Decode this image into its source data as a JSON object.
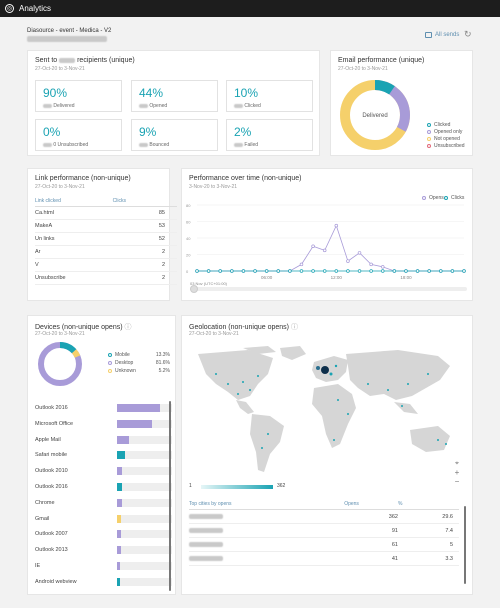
{
  "header": {
    "app_title": "Analytics",
    "logo_icon": "analytics-logo-icon"
  },
  "campaign": {
    "name": "Diasource - event - Medica - V2"
  },
  "toolbar": {
    "all_sends_label": "All sends",
    "calendar_icon": "calendar-icon",
    "refresh_icon": "refresh-icon"
  },
  "sent": {
    "title": "Sent to",
    "title_suffix": "recipients (unique)",
    "dates": "27-Oct-20 to 3-Nov-21",
    "stats": [
      {
        "value": "90%",
        "label": "Delivered"
      },
      {
        "value": "44%",
        "label": "Opened"
      },
      {
        "value": "10%",
        "label": "Clicked"
      },
      {
        "value": "0%",
        "label": "0 Unsubscribed"
      },
      {
        "value": "9%",
        "label": "Bounced"
      },
      {
        "value": "2%",
        "label": "Failed"
      }
    ]
  },
  "email_perf": {
    "title": "Email performance (unique)",
    "dates": "27-Oct-20 to 3-Nov-21",
    "center_label": "Delivered",
    "colors": {
      "clicked": "#1aa3b3",
      "opened_only": "#a89bd8",
      "not_opened": "#f5d06b",
      "unsubscribed": "#e26a7a"
    },
    "legend": [
      "Clicked",
      "Opened only",
      "Not opened",
      "Unsubscribed"
    ]
  },
  "link_perf": {
    "title": "Link performance (non-unique)",
    "dates": "27-Oct-20 to 3-Nov-21",
    "col_link": "Link clicked",
    "col_clicks": "Clicks",
    "rows": [
      {
        "link": "Ca.html",
        "clicks": "85"
      },
      {
        "link": "MakeA",
        "clicks": "53"
      },
      {
        "link": "Un links",
        "clicks": "52"
      },
      {
        "link": "Ar",
        "clicks": "2"
      },
      {
        "link": "V",
        "clicks": "2"
      },
      {
        "link": "Unsubscribe",
        "clicks": "2"
      }
    ]
  },
  "perf_time": {
    "title": "Performance over time (non-unique)",
    "dates": "3-Nov-20 to 3-Nov-21",
    "legend_opens": "Opens",
    "legend_clicks": "Clicks",
    "x_ticks": [
      "06:00",
      "12:00",
      "18:00"
    ],
    "x_start_label": "03 Nov (UTC+01:00)",
    "y_ticks": [
      "80",
      "60",
      "40",
      "20",
      "0"
    ]
  },
  "chart_data": {
    "type": "line",
    "title": "Performance over time (non-unique)",
    "x": [
      "00:00",
      "01:00",
      "02:00",
      "03:00",
      "04:00",
      "05:00",
      "06:00",
      "07:00",
      "08:00",
      "09:00",
      "10:00",
      "11:00",
      "12:00",
      "13:00",
      "14:00",
      "15:00",
      "16:00",
      "17:00",
      "18:00",
      "19:00",
      "20:00",
      "21:00",
      "22:00",
      "23:00"
    ],
    "series": [
      {
        "name": "Opens",
        "color": "#a89bd8",
        "values": [
          0,
          0,
          0,
          0,
          0,
          0,
          0,
          0,
          0,
          8,
          30,
          25,
          55,
          12,
          22,
          8,
          5,
          0,
          0,
          0,
          0,
          0,
          0,
          0
        ]
      },
      {
        "name": "Clicks",
        "color": "#1aa3b3",
        "values": [
          0,
          0,
          0,
          0,
          0,
          0,
          0,
          0,
          0,
          0,
          0,
          0,
          0,
          0,
          0,
          0,
          0,
          0,
          0,
          0,
          0,
          0,
          0,
          0
        ]
      }
    ],
    "ylim": [
      0,
      80
    ],
    "grid": true,
    "legend": "top-right"
  },
  "devices": {
    "title": "Devices (non-unique opens)",
    "dates": "27-Oct-20 to 3-Nov-21",
    "donut_legend": [
      {
        "label": "Mobile",
        "value": "13.3%",
        "color": "#1aa3b3"
      },
      {
        "label": "Desktop",
        "value": "81.6%",
        "color": "#a89bd8"
      },
      {
        "label": "Unknown",
        "value": "5.2%",
        "color": "#f5d06b"
      }
    ],
    "rows": [
      {
        "name": "Outlook 2016",
        "pct": "31.4%",
        "fraction": 0.314,
        "color": "#a89bd8"
      },
      {
        "name": "Microsoft Office",
        "pct": "25.6%",
        "fraction": 0.256,
        "color": "#a89bd8"
      },
      {
        "name": "Apple Mail",
        "pct": "8.4%",
        "fraction": 0.084,
        "color": "#a89bd8"
      },
      {
        "name": "Safari mobile",
        "pct": "5.9%",
        "fraction": 0.059,
        "color": "#1aa3b3"
      },
      {
        "name": "Outlook 2010",
        "pct": "3.5%",
        "fraction": 0.035,
        "color": "#a89bd8"
      },
      {
        "name": "Outlook 2016",
        "pct": "3.4%",
        "fraction": 0.034,
        "color": "#1aa3b3"
      },
      {
        "name": "Chrome",
        "pct": "3.3%",
        "fraction": 0.033,
        "color": "#a89bd8"
      },
      {
        "name": "Gmail",
        "pct": "2.8%",
        "fraction": 0.028,
        "color": "#f5d06b"
      },
      {
        "name": "Outlook 2007",
        "pct": "2.8%",
        "fraction": 0.028,
        "color": "#a89bd8"
      },
      {
        "name": "Outlook 2013",
        "pct": "2.6%",
        "fraction": 0.026,
        "color": "#a89bd8"
      },
      {
        "name": "IE",
        "pct": "1.9%",
        "fraction": 0.019,
        "color": "#a89bd8"
      },
      {
        "name": "Android webview",
        "pct": "1.6%",
        "fraction": 0.016,
        "color": "#1aa3b3"
      }
    ]
  },
  "geo": {
    "title": "Geolocation (non-unique opens)",
    "dates": "27-Oct-20 to 3-Nov-21",
    "scale_min": "1",
    "scale_max": "362",
    "col_city": "Top cities by opens",
    "col_opens": "Opens",
    "col_pct": "%",
    "rows": [
      {
        "city": "",
        "opens": "362",
        "pct": "29.6"
      },
      {
        "city": "",
        "opens": "91",
        "pct": "7.4"
      },
      {
        "city": "",
        "opens": "61",
        "pct": "5"
      },
      {
        "city": "",
        "opens": "41",
        "pct": "3.3"
      }
    ]
  }
}
